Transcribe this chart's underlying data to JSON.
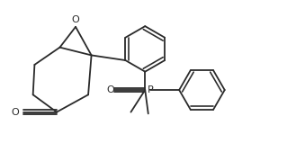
{
  "bg_color": "#ffffff",
  "line_color": "#2a2a2a",
  "line_width": 1.3,
  "figsize": [
    3.19,
    1.79
  ],
  "dpi": 100,
  "xlim": [
    0,
    9
  ],
  "ylim": [
    0,
    5.1
  ]
}
